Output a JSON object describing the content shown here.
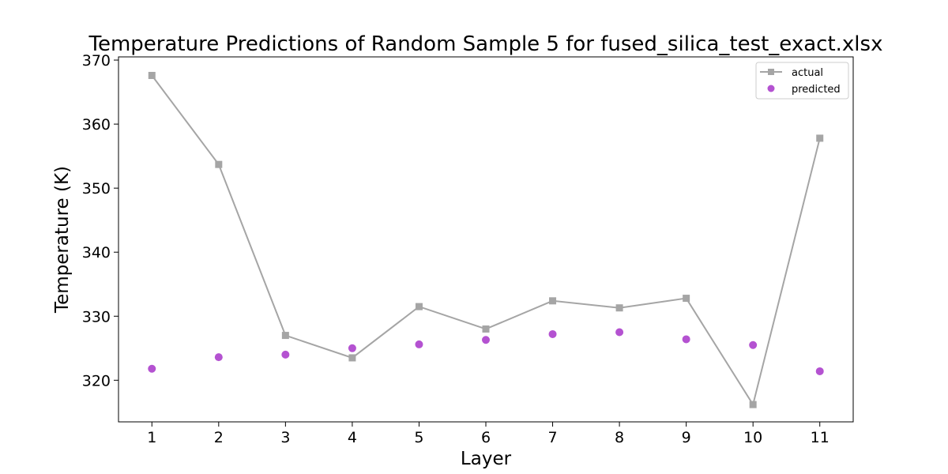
{
  "chart_data": {
    "type": "line",
    "title": "Temperature Predictions of Random Sample 5 for fused_silica_test_exact.xlsx",
    "xlabel": "Layer",
    "ylabel": "Temperature (K)",
    "x": [
      1,
      2,
      3,
      4,
      5,
      6,
      7,
      8,
      9,
      10,
      11
    ],
    "x_ticks": [
      "1",
      "2",
      "3",
      "4",
      "5",
      "6",
      "7",
      "8",
      "9",
      "10",
      "11"
    ],
    "y_ticks": [
      "320",
      "330",
      "340",
      "350",
      "360",
      "370"
    ],
    "ylim": [
      313.5,
      370.5
    ],
    "xlim": [
      0.5,
      11.5
    ],
    "grid": false,
    "legend_position": "top-right",
    "series": [
      {
        "name": "actual",
        "style": "line-square-marker",
        "color": "#a5a5a5",
        "values": [
          367.6,
          353.7,
          327.0,
          323.5,
          331.5,
          328.0,
          332.4,
          331.3,
          332.8,
          316.2,
          357.8
        ]
      },
      {
        "name": "predicted",
        "style": "scatter-circle",
        "color": "#b452d1",
        "values": [
          321.8,
          323.6,
          324.0,
          325.0,
          325.6,
          326.3,
          327.2,
          327.5,
          326.4,
          325.5,
          321.4
        ]
      }
    ]
  }
}
